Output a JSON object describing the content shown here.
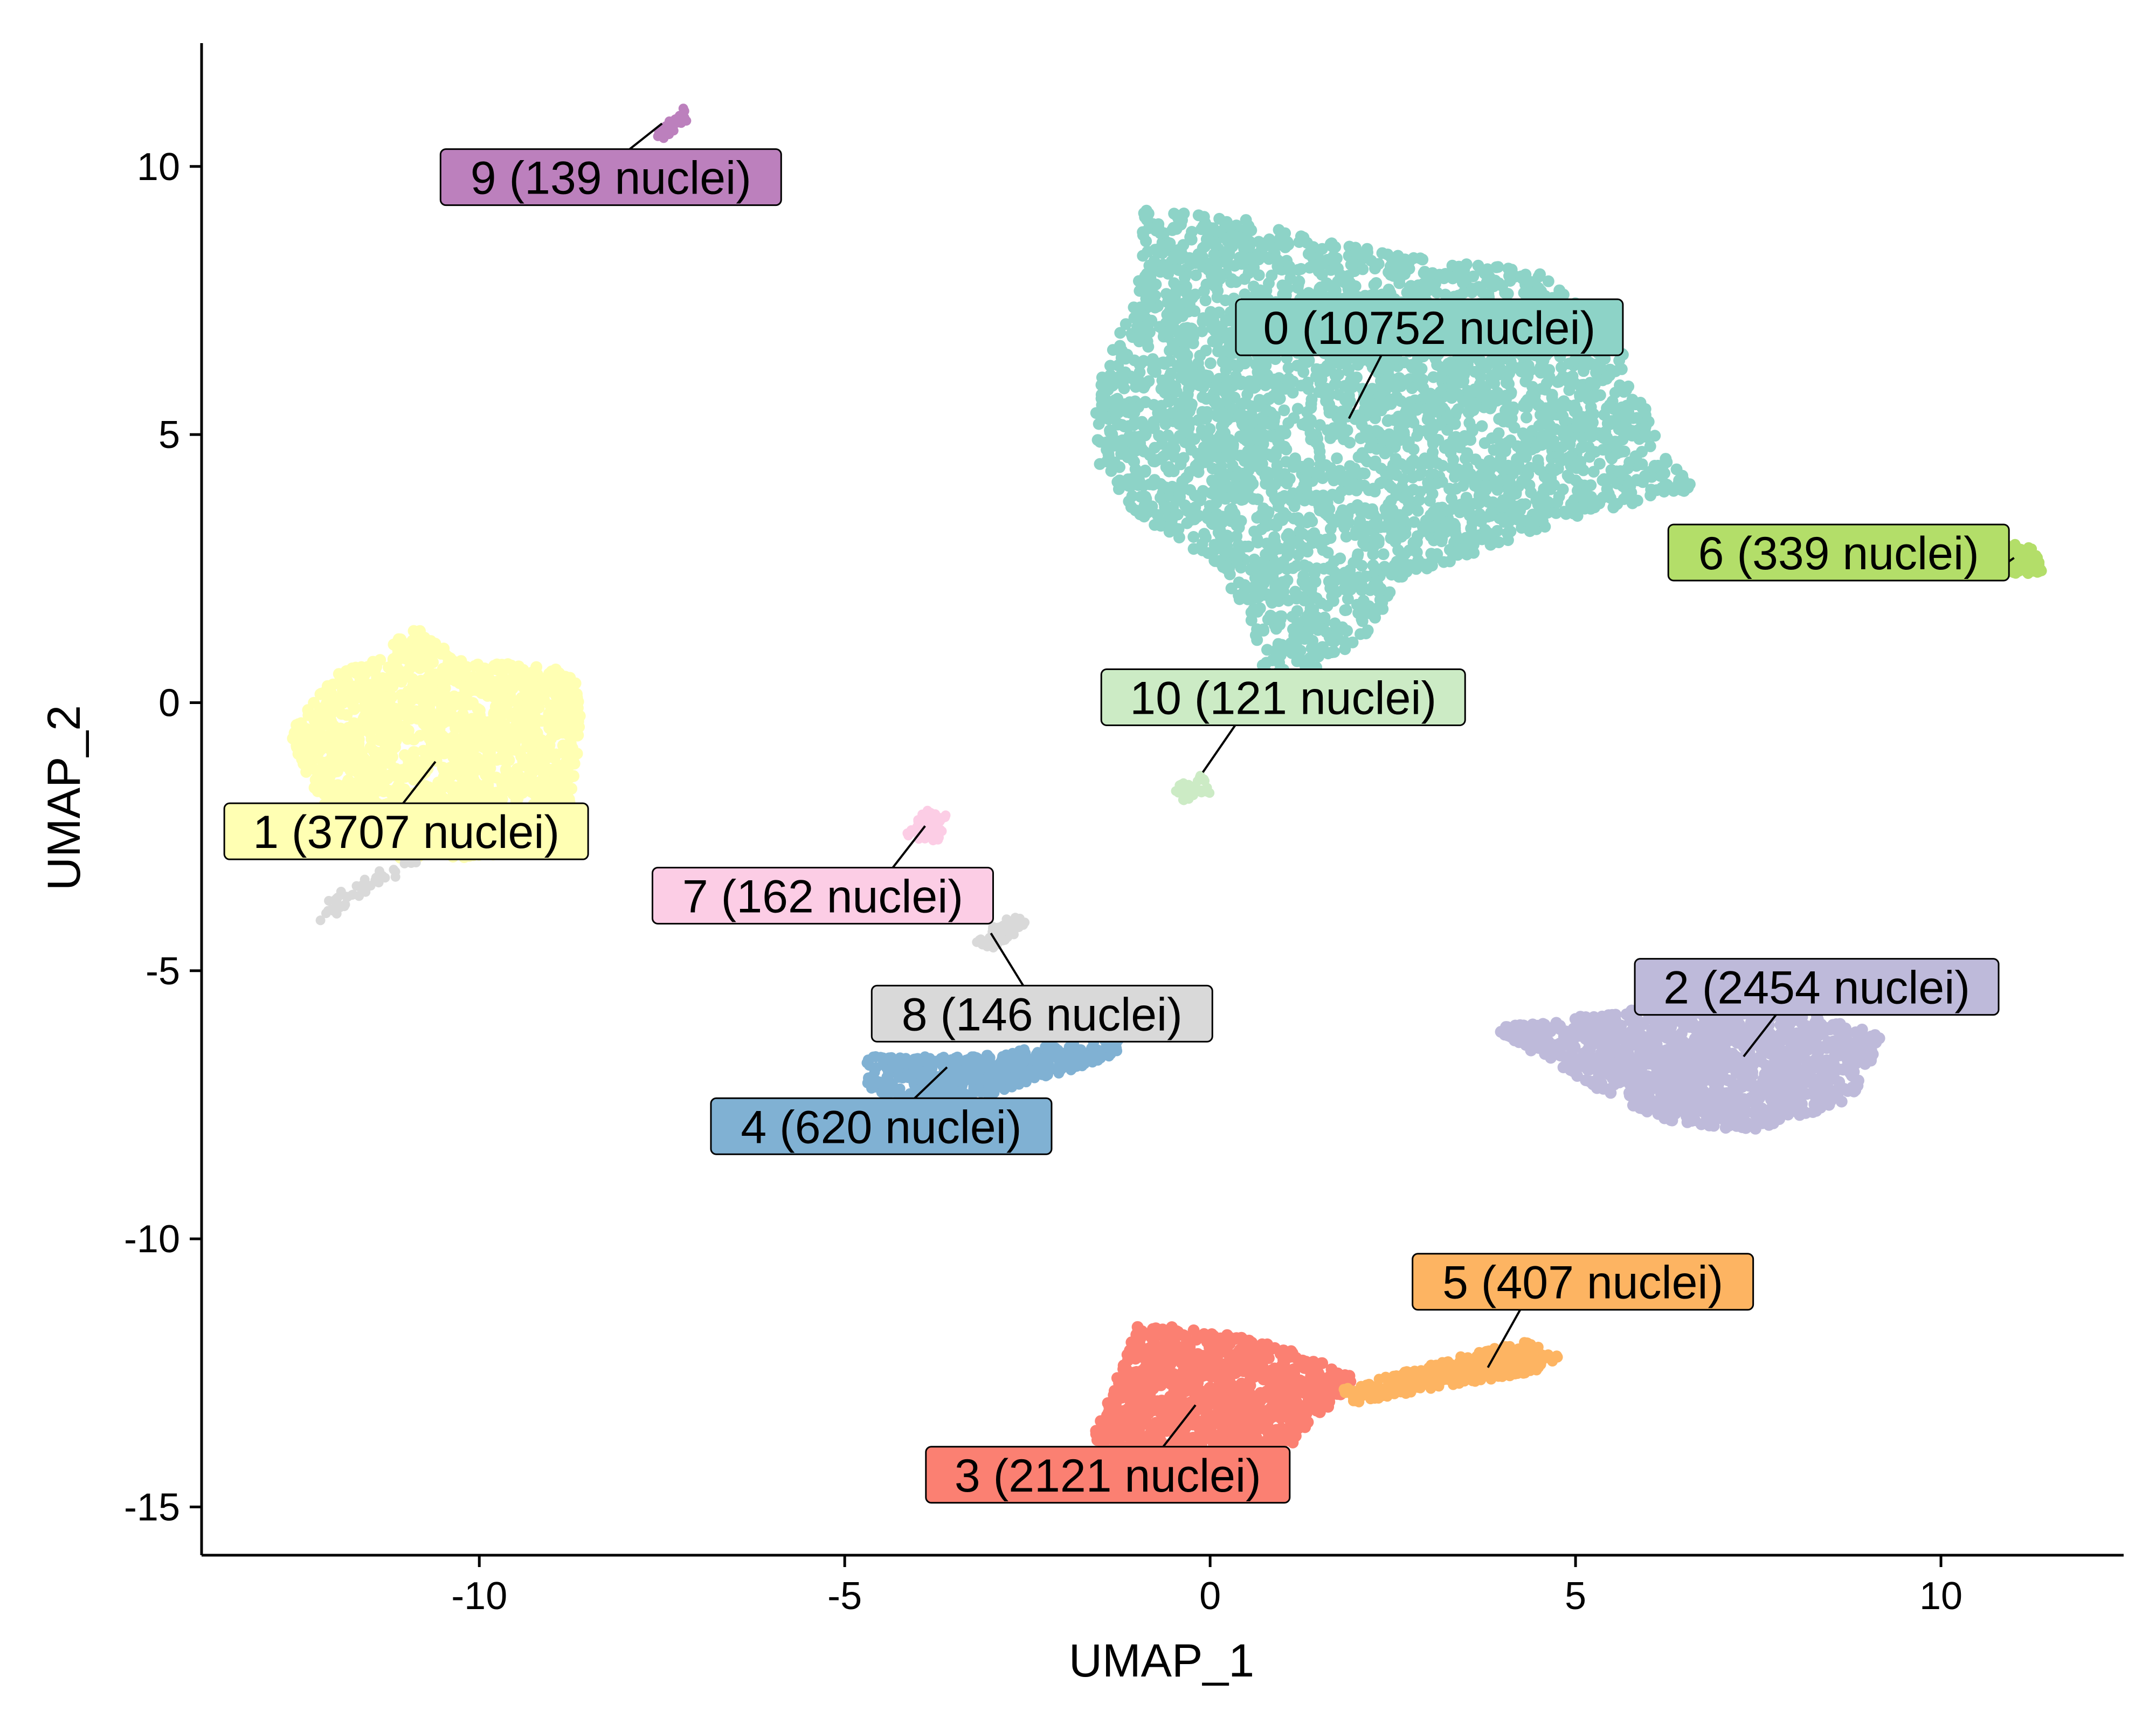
{
  "chart_data": {
    "type": "scatter",
    "xlabel": "UMAP_1",
    "ylabel": "UMAP_2",
    "xlim": [
      -13.8,
      12.5
    ],
    "ylim": [
      -15.9,
      12.3
    ],
    "x_ticks": [
      -10,
      -5,
      0,
      5,
      10
    ],
    "y_ticks": [
      10,
      5,
      0,
      -5,
      -10,
      -15
    ],
    "x_tick_labels": [
      "-10",
      "-5",
      "0",
      "5",
      "10"
    ],
    "y_tick_labels": [
      "10",
      "5",
      "0",
      "-5",
      "-10",
      "-15"
    ],
    "grid": false,
    "legend": "none",
    "clusters": [
      {
        "id": "0",
        "label": "0 (10752 nuclei)",
        "color": "#8DD3C7",
        "center": [
          1.9,
          5.3
        ],
        "label_pos": [
          3.0,
          7.0
        ]
      },
      {
        "id": "1",
        "label": "1 (3707 nuclei)",
        "color": "#FFFFB3",
        "center": [
          -10.6,
          -1.1
        ],
        "label_pos": [
          -11.0,
          -2.4
        ]
      },
      {
        "id": "2",
        "label": "2 (2454 nuclei)",
        "color": "#BEBADA",
        "center": [
          7.3,
          -6.6
        ],
        "label_pos": [
          8.3,
          -5.3
        ]
      },
      {
        "id": "3",
        "label": "3 (2121 nuclei)",
        "color": "#FB8072",
        "center": [
          -0.2,
          -13.1
        ],
        "label_pos": [
          -1.4,
          -14.4
        ]
      },
      {
        "id": "4",
        "label": "4 (620 nuclei)",
        "color": "#80B1D3",
        "center": [
          -3.6,
          -6.8
        ],
        "label_pos": [
          -4.5,
          -7.9
        ]
      },
      {
        "id": "5",
        "label": "5 (407 nuclei)",
        "color": "#FDB462",
        "center": [
          3.8,
          -12.4
        ],
        "label_pos": [
          5.1,
          -10.8
        ]
      },
      {
        "id": "6",
        "label": "6 (339 nuclei)",
        "color": "#B3DE69",
        "center": [
          11.0,
          2.7
        ],
        "label_pos": [
          8.6,
          2.8
        ]
      },
      {
        "id": "7",
        "label": "7 (162 nuclei)",
        "color": "#FCCDE5",
        "center": [
          -3.9,
          -2.3
        ],
        "label_pos": [
          -5.3,
          -3.6
        ]
      },
      {
        "id": "8",
        "label": "8 (146 nuclei)",
        "color": "#D9D9D9",
        "center": [
          -3.0,
          -4.3
        ],
        "label_pos": [
          -2.3,
          -5.8
        ]
      },
      {
        "id": "9",
        "label": "9 (139 nuclei)",
        "color": "#BC80BD",
        "center": [
          -7.5,
          10.8
        ],
        "label_pos": [
          -8.2,
          9.8
        ]
      },
      {
        "id": "10",
        "label": "10 (121 nuclei)",
        "color": "#CCEBC5",
        "center": [
          -0.1,
          -1.3
        ],
        "label_pos": [
          1.0,
          0.1
        ]
      }
    ]
  }
}
